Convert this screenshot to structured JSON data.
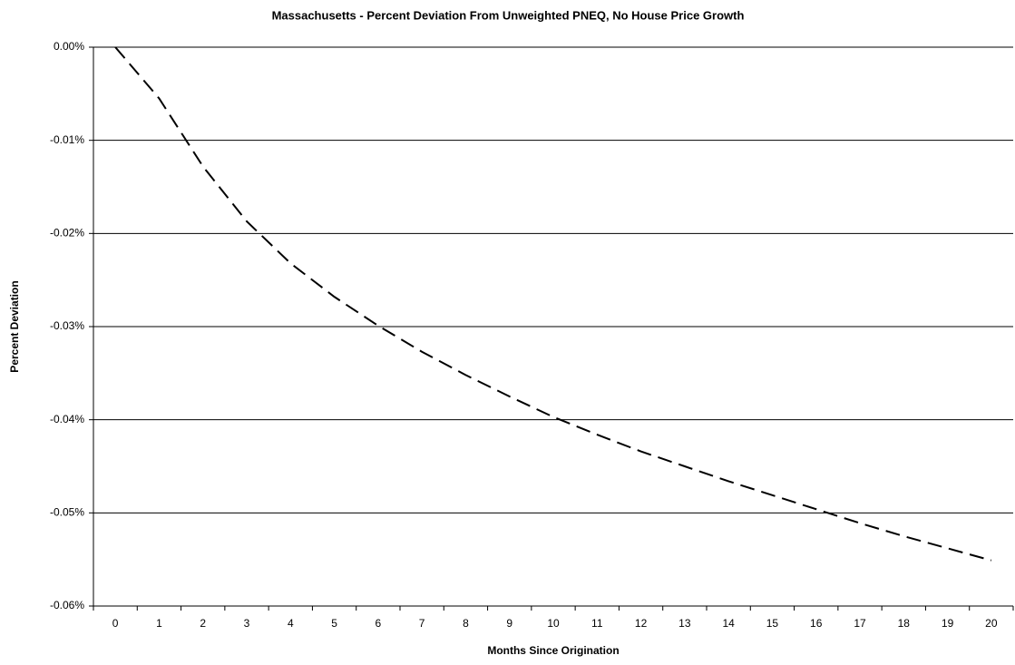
{
  "chart_data": {
    "type": "line",
    "title": "Massachusetts - Percent Deviation From Unweighted PNEQ,  No House Price Growth",
    "x_label": "Months Since Origination",
    "y_label": "Percent Deviation",
    "categories": [
      "0",
      "1",
      "2",
      "3",
      "4",
      "5",
      "6",
      "7",
      "8",
      "9",
      "10",
      "11",
      "12",
      "13",
      "14",
      "15",
      "16",
      "17",
      "18",
      "19",
      "20"
    ],
    "values": [
      0,
      -0.0055,
      -0.0128,
      -0.0187,
      -0.0232,
      -0.0268,
      -0.0299,
      -0.0327,
      -0.0352,
      -0.0375,
      -0.0397,
      -0.0416,
      -0.0434,
      -0.045,
      -0.0466,
      -0.0481,
      -0.0496,
      -0.0511,
      -0.0525,
      -0.0538,
      -0.0551
    ],
    "color": "#000000",
    "linestyle": "dashed",
    "ylim": [
      -0.06,
      0
    ],
    "yticks": [
      {
        "value": 0,
        "label": "0.00%"
      },
      {
        "value": -0.01,
        "label": "-0.01%"
      },
      {
        "value": -0.02,
        "label": "-0.02%"
      },
      {
        "value": -0.03,
        "label": "-0.03%"
      },
      {
        "value": -0.04,
        "label": "-0.04%"
      },
      {
        "value": -0.05,
        "label": "-0.05%"
      },
      {
        "value": -0.06,
        "label": "-0.06%"
      }
    ],
    "grid": true
  }
}
